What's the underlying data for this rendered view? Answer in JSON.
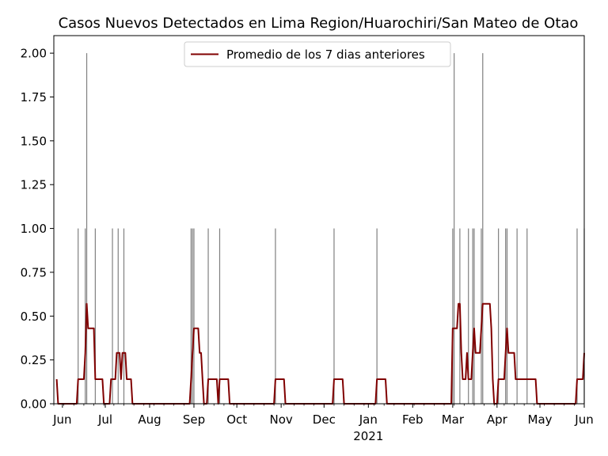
{
  "chart_data": {
    "type": "bar",
    "title": "Casos Nuevos Detectados en Lima Region/Huarochiri/San Mateo de Otao",
    "xlabel": "",
    "ylabel": "",
    "ylim": [
      0,
      2.1
    ],
    "x_range": [
      "2020-05-26",
      "2021-06-01"
    ],
    "yticks": [
      "0.00",
      "0.25",
      "0.50",
      "0.75",
      "1.00",
      "1.25",
      "1.50",
      "1.75",
      "2.00"
    ],
    "xticks": [
      {
        "date": "2020-06-01",
        "label": "Jun"
      },
      {
        "date": "2020-07-01",
        "label": "Jul"
      },
      {
        "date": "2020-08-01",
        "label": "Aug"
      },
      {
        "date": "2020-09-01",
        "label": "Sep"
      },
      {
        "date": "2020-10-01",
        "label": "Oct"
      },
      {
        "date": "2020-11-01",
        "label": "Nov"
      },
      {
        "date": "2020-12-01",
        "label": "Dec"
      },
      {
        "date": "2021-01-01",
        "label": "Jan"
      },
      {
        "date": "2021-02-01",
        "label": "Feb"
      },
      {
        "date": "2021-03-01",
        "label": "Mar"
      },
      {
        "date": "2021-04-01",
        "label": "Apr"
      },
      {
        "date": "2021-05-01",
        "label": "May"
      },
      {
        "date": "2021-06-01",
        "label": "Jun"
      }
    ],
    "year_label": "2021",
    "legend": {
      "label": "Promedio de los 7 dias anteriores",
      "placement": "upper center"
    },
    "colors": {
      "bars": "#808080",
      "line": "#800000"
    },
    "series": [
      {
        "type": "bar",
        "values": [
          {
            "date": "2020-06-12",
            "value": 1
          },
          {
            "date": "2020-06-17",
            "value": 1
          },
          {
            "date": "2020-06-18",
            "value": 2
          },
          {
            "date": "2020-06-24",
            "value": 1
          },
          {
            "date": "2020-07-06",
            "value": 1
          },
          {
            "date": "2020-07-10",
            "value": 1
          },
          {
            "date": "2020-07-14",
            "value": 1
          },
          {
            "date": "2020-08-30",
            "value": 1
          },
          {
            "date": "2020-08-31",
            "value": 1
          },
          {
            "date": "2020-09-01",
            "value": 1
          },
          {
            "date": "2020-09-11",
            "value": 1
          },
          {
            "date": "2020-09-19",
            "value": 1
          },
          {
            "date": "2020-10-28",
            "value": 1
          },
          {
            "date": "2020-12-08",
            "value": 1
          },
          {
            "date": "2021-01-07",
            "value": 1
          },
          {
            "date": "2021-03-01",
            "value": 1
          },
          {
            "date": "2021-03-02",
            "value": 2
          },
          {
            "date": "2021-03-06",
            "value": 1
          },
          {
            "date": "2021-03-12",
            "value": 1
          },
          {
            "date": "2021-03-15",
            "value": 1
          },
          {
            "date": "2021-03-16",
            "value": 1
          },
          {
            "date": "2021-03-21",
            "value": 1
          },
          {
            "date": "2021-03-22",
            "value": 2
          },
          {
            "date": "2021-04-02",
            "value": 1
          },
          {
            "date": "2021-04-07",
            "value": 1
          },
          {
            "date": "2021-04-08",
            "value": 1
          },
          {
            "date": "2021-04-15",
            "value": 1
          },
          {
            "date": "2021-04-22",
            "value": 1
          },
          {
            "date": "2021-05-27",
            "value": 1
          },
          {
            "date": "2021-06-01",
            "value": 1
          }
        ]
      },
      {
        "type": "line",
        "name": "Promedio de los 7 dias anteriores",
        "points": [
          [
            "2020-05-28",
            0.14
          ],
          [
            "2020-05-29",
            0.0
          ],
          [
            "2020-06-11",
            0.0
          ],
          [
            "2020-06-12",
            0.14
          ],
          [
            "2020-06-16",
            0.14
          ],
          [
            "2020-06-17",
            0.29
          ],
          [
            "2020-06-18",
            0.57
          ],
          [
            "2020-06-19",
            0.43
          ],
          [
            "2020-06-23",
            0.43
          ],
          [
            "2020-06-24",
            0.14
          ],
          [
            "2020-06-29",
            0.14
          ],
          [
            "2020-06-30",
            0.0
          ],
          [
            "2020-07-04",
            0.0
          ],
          [
            "2020-07-05",
            0.14
          ],
          [
            "2020-07-08",
            0.14
          ],
          [
            "2020-07-09",
            0.29
          ],
          [
            "2020-07-11",
            0.29
          ],
          [
            "2020-07-12",
            0.14
          ],
          [
            "2020-07-13",
            0.29
          ],
          [
            "2020-07-15",
            0.29
          ],
          [
            "2020-07-16",
            0.14
          ],
          [
            "2020-07-19",
            0.14
          ],
          [
            "2020-07-20",
            0.0
          ],
          [
            "2020-08-29",
            0.0
          ],
          [
            "2020-08-30",
            0.14
          ],
          [
            "2020-08-31",
            0.29
          ],
          [
            "2020-09-01",
            0.43
          ],
          [
            "2020-09-04",
            0.43
          ],
          [
            "2020-09-05",
            0.29
          ],
          [
            "2020-09-06",
            0.29
          ],
          [
            "2020-09-07",
            0.14
          ],
          [
            "2020-09-08",
            0.0
          ],
          [
            "2020-09-10",
            0.0
          ],
          [
            "2020-09-11",
            0.14
          ],
          [
            "2020-09-17",
            0.14
          ],
          [
            "2020-09-18",
            0.0
          ],
          [
            "2020-09-19",
            0.14
          ],
          [
            "2020-09-25",
            0.14
          ],
          [
            "2020-09-26",
            0.0
          ],
          [
            "2020-10-27",
            0.0
          ],
          [
            "2020-10-28",
            0.14
          ],
          [
            "2020-11-03",
            0.14
          ],
          [
            "2020-11-04",
            0.0
          ],
          [
            "2020-12-07",
            0.0
          ],
          [
            "2020-12-08",
            0.14
          ],
          [
            "2020-12-14",
            0.14
          ],
          [
            "2020-12-15",
            0.0
          ],
          [
            "2021-01-06",
            0.0
          ],
          [
            "2021-01-07",
            0.14
          ],
          [
            "2021-01-13",
            0.14
          ],
          [
            "2021-01-14",
            0.0
          ],
          [
            "2021-02-28",
            0.0
          ],
          [
            "2021-03-01",
            0.43
          ],
          [
            "2021-03-04",
            0.43
          ],
          [
            "2021-03-05",
            0.57
          ],
          [
            "2021-03-06",
            0.57
          ],
          [
            "2021-03-07",
            0.29
          ],
          [
            "2021-03-08",
            0.14
          ],
          [
            "2021-03-10",
            0.14
          ],
          [
            "2021-03-11",
            0.29
          ],
          [
            "2021-03-12",
            0.14
          ],
          [
            "2021-03-14",
            0.14
          ],
          [
            "2021-03-15",
            0.29
          ],
          [
            "2021-03-16",
            0.43
          ],
          [
            "2021-03-17",
            0.29
          ],
          [
            "2021-03-20",
            0.29
          ],
          [
            "2021-03-21",
            0.43
          ],
          [
            "2021-03-22",
            0.57
          ],
          [
            "2021-03-27",
            0.57
          ],
          [
            "2021-03-28",
            0.43
          ],
          [
            "2021-03-29",
            0.14
          ],
          [
            "2021-03-30",
            0.0
          ],
          [
            "2021-04-01",
            0.0
          ],
          [
            "2021-04-02",
            0.14
          ],
          [
            "2021-04-06",
            0.14
          ],
          [
            "2021-04-07",
            0.29
          ],
          [
            "2021-04-08",
            0.43
          ],
          [
            "2021-04-09",
            0.29
          ],
          [
            "2021-04-13",
            0.29
          ],
          [
            "2021-04-14",
            0.14
          ],
          [
            "2021-04-28",
            0.14
          ],
          [
            "2021-04-29",
            0.0
          ],
          [
            "2021-05-26",
            0.0
          ],
          [
            "2021-05-27",
            0.14
          ],
          [
            "2021-05-31",
            0.14
          ],
          [
            "2021-06-01",
            0.29
          ]
        ]
      }
    ]
  }
}
